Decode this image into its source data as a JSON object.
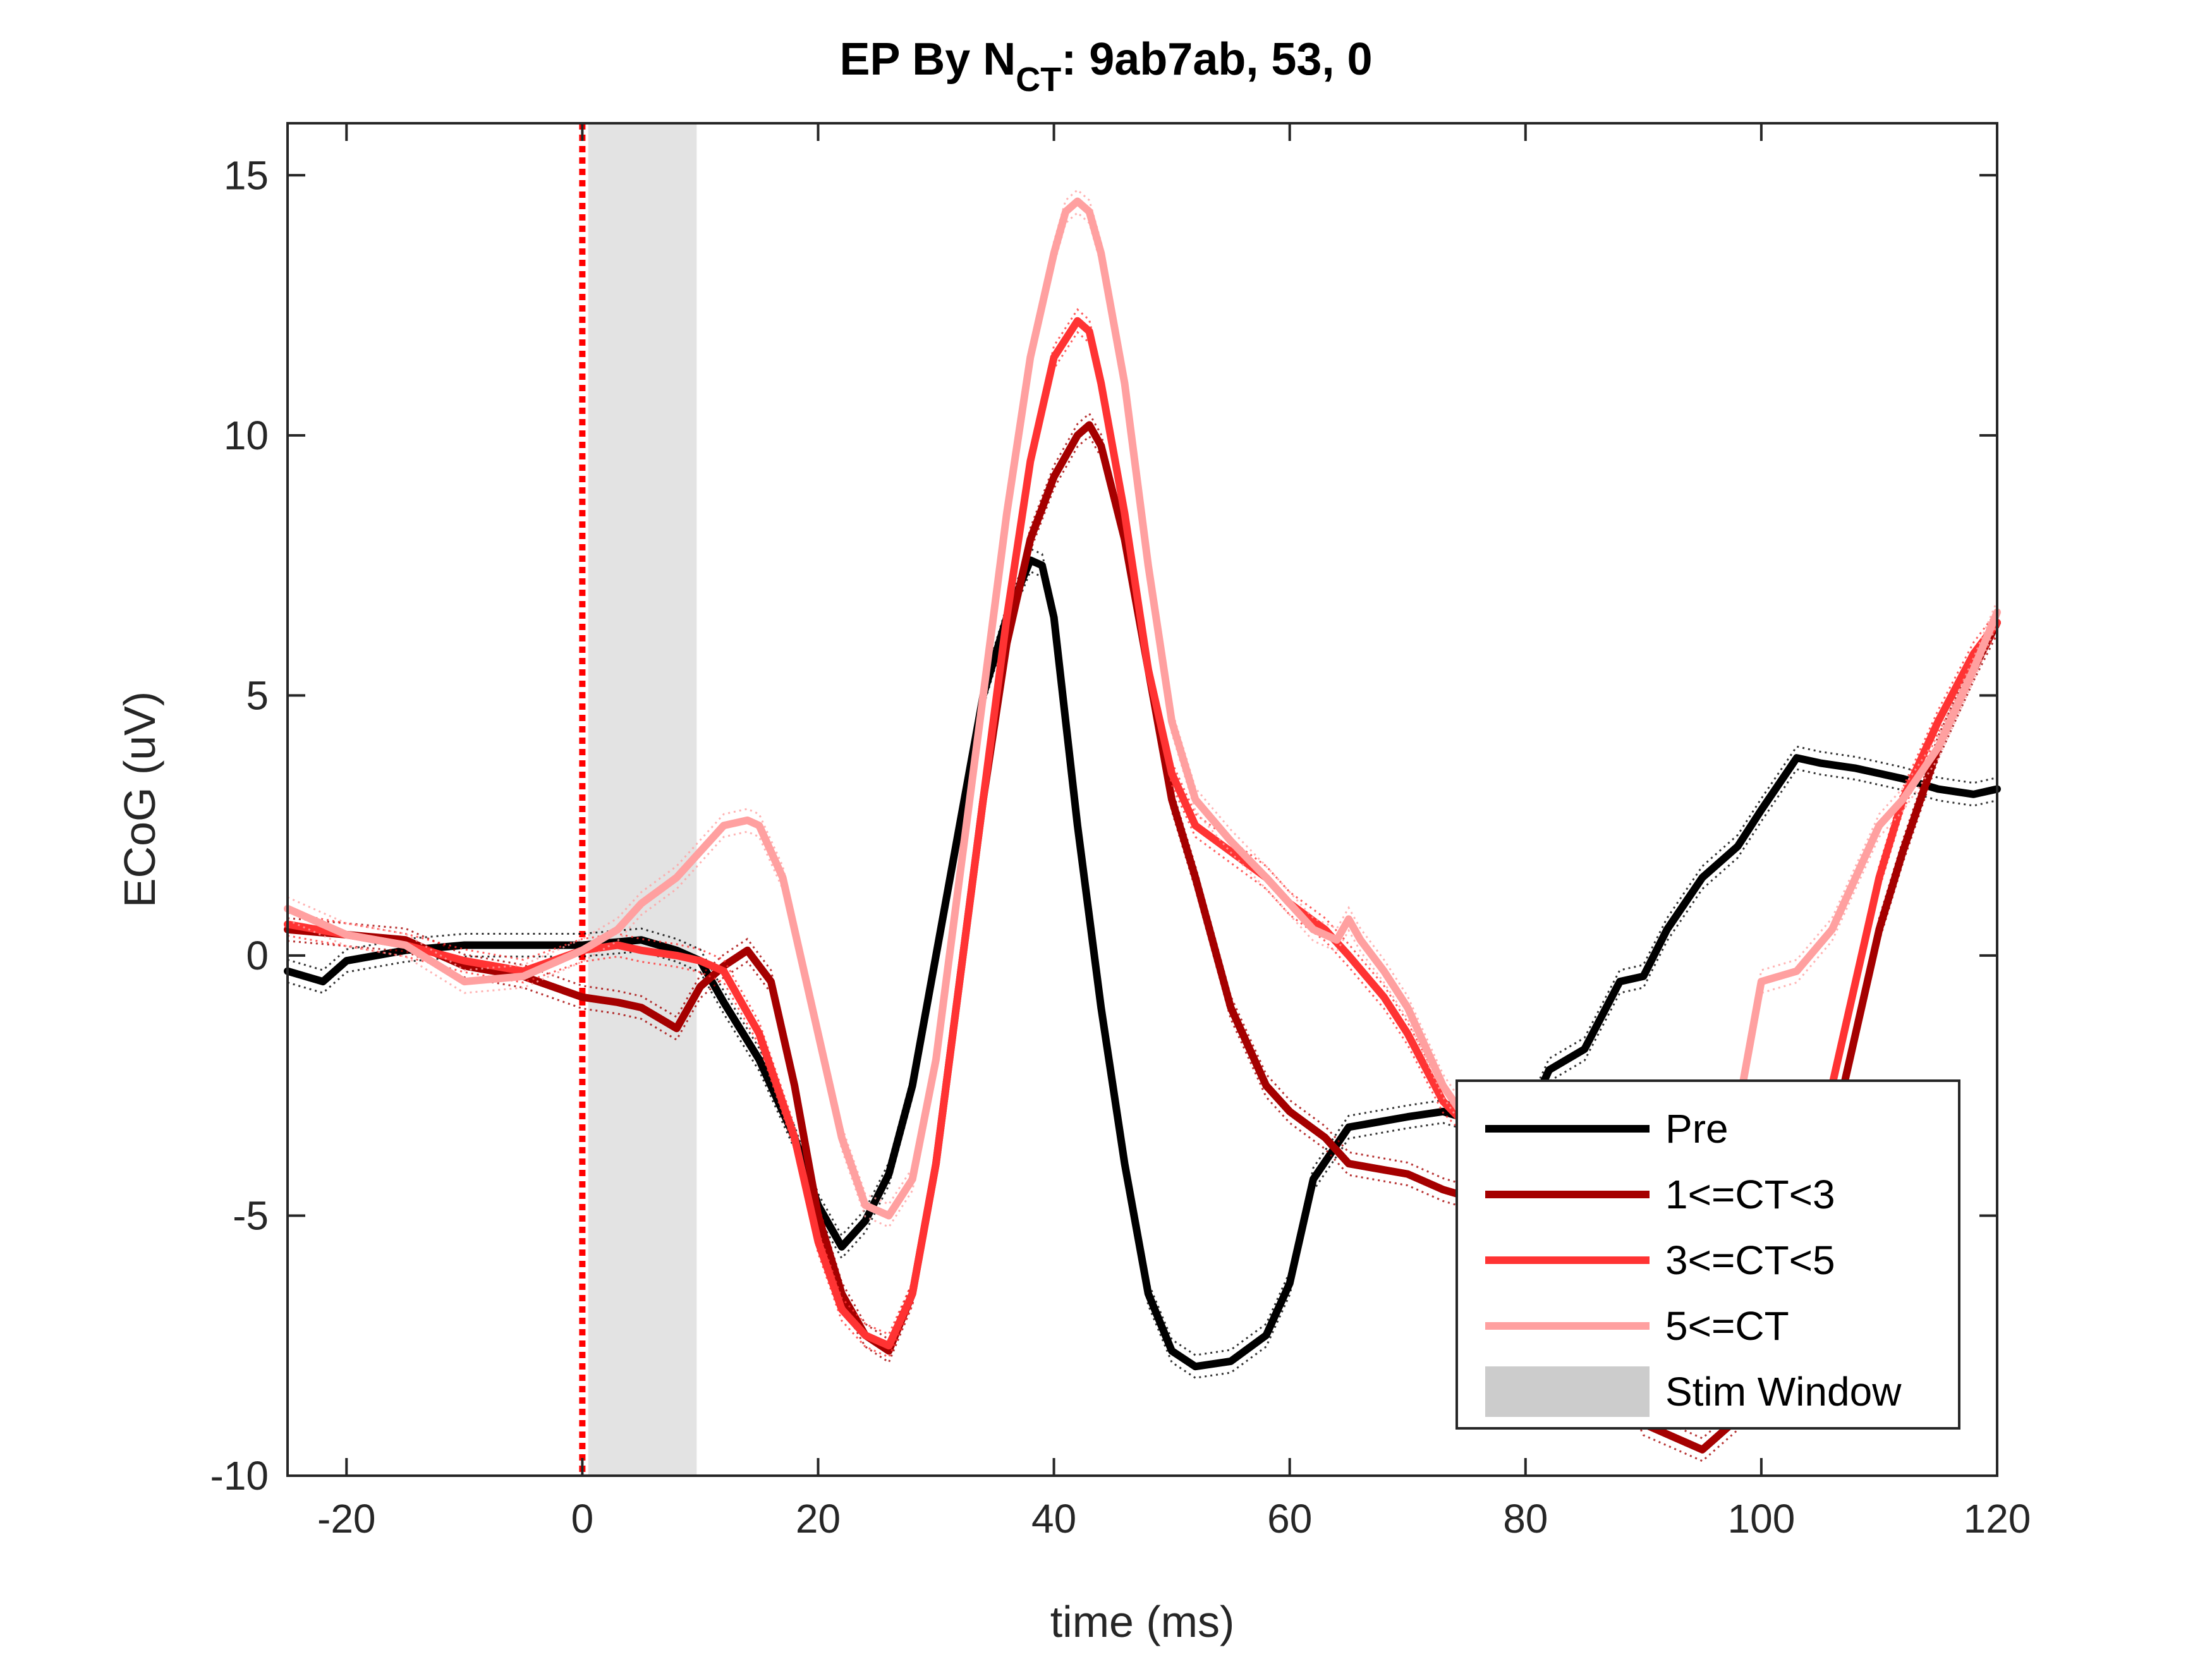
{
  "chart_data": {
    "type": "line",
    "title": {
      "prefix": "EP By N",
      "subscript": "CT",
      "suffix": ": 9ab7ab, 53, 0"
    },
    "xlabel": "time (ms)",
    "ylabel": "ECoG (uV)",
    "xlim": [
      -25,
      120
    ],
    "ylim": [
      -10,
      16
    ],
    "xticks": [
      -20,
      0,
      20,
      40,
      60,
      80,
      100,
      120
    ],
    "yticks": [
      -10,
      -5,
      0,
      5,
      10,
      15
    ],
    "xtick_labels": [
      "-20",
      "0",
      "20",
      "40",
      "60",
      "80",
      "100",
      "120"
    ],
    "ytick_labels": [
      "-10",
      "-5",
      "0",
      "5",
      "10",
      "15"
    ],
    "grid": false,
    "legend_position": "bottom-right",
    "stim_window": {
      "label": "Stim Window",
      "x": [
        0.5,
        9.7
      ],
      "color": "#cccccc"
    },
    "stim_marker": {
      "x": 0,
      "color": "#ff0000",
      "style": "dotted"
    },
    "series": [
      {
        "name": "Pre",
        "color": "#000000",
        "x": [
          -25,
          -22,
          -20,
          -15,
          -10,
          -5,
          0,
          5,
          8,
          10,
          12,
          15,
          18,
          20,
          22,
          24,
          26,
          28,
          30,
          32,
          34,
          36,
          38,
          39,
          40,
          42,
          44,
          46,
          48,
          50,
          52,
          55,
          58,
          60,
          62,
          65,
          70,
          73,
          76,
          78,
          80,
          82,
          85,
          88,
          90,
          92,
          95,
          98,
          100,
          103,
          105,
          108,
          110,
          112,
          115,
          118,
          120
        ],
        "y": [
          -0.3,
          -0.5,
          -0.1,
          0.1,
          0.2,
          0.2,
          0.2,
          0.3,
          0.1,
          -0.1,
          -0.9,
          -2.0,
          -3.5,
          -4.8,
          -5.6,
          -5.1,
          -4.2,
          -2.5,
          0.0,
          2.5,
          5.0,
          6.5,
          7.6,
          7.5,
          6.5,
          2.5,
          -1.0,
          -4.0,
          -6.5,
          -7.6,
          -7.9,
          -7.8,
          -7.3,
          -6.3,
          -4.3,
          -3.3,
          -3.1,
          -3.0,
          -3.2,
          -3.2,
          -3.2,
          -2.2,
          -1.8,
          -0.5,
          -0.4,
          0.5,
          1.5,
          2.1,
          2.8,
          3.8,
          3.7,
          3.6,
          3.5,
          3.4,
          3.2,
          3.1,
          3.2
        ]
      },
      {
        "name": "1<=CT<3",
        "color": "#a50000",
        "x": [
          -25,
          -20,
          -15,
          -10,
          -5,
          0,
          3,
          5,
          8,
          10,
          12,
          14,
          16,
          18,
          20,
          22,
          24,
          26,
          28,
          30,
          32,
          34,
          36,
          38,
          40,
          42,
          43,
          44,
          46,
          48,
          50,
          52,
          55,
          58,
          60,
          63,
          65,
          70,
          73,
          76,
          78,
          80,
          85,
          88,
          90,
          95,
          100,
          103,
          106,
          108,
          110,
          112,
          115,
          118,
          120
        ],
        "y": [
          0.5,
          0.4,
          0.3,
          -0.2,
          -0.4,
          -0.8,
          -0.9,
          -1.0,
          -1.4,
          -0.6,
          -0.2,
          0.1,
          -0.5,
          -2.5,
          -5.0,
          -6.5,
          -7.3,
          -7.6,
          -6.5,
          -4.0,
          -0.5,
          3.0,
          6.0,
          8.0,
          9.2,
          10.0,
          10.2,
          9.8,
          8.0,
          5.5,
          3.0,
          1.5,
          -1.0,
          -2.5,
          -3.0,
          -3.5,
          -4.0,
          -4.2,
          -4.5,
          -4.7,
          -4.7,
          -5.5,
          -6.5,
          -8.0,
          -9.0,
          -9.5,
          -8.5,
          -6.5,
          -3.5,
          -1.5,
          0.5,
          2.0,
          4.0,
          5.5,
          6.4
        ]
      },
      {
        "name": "3<=CT<5",
        "color": "#ff3333",
        "x": [
          -25,
          -20,
          -15,
          -10,
          -5,
          0,
          3,
          5,
          8,
          10,
          12,
          15,
          18,
          20,
          22,
          24,
          26,
          28,
          30,
          32,
          34,
          36,
          38,
          40,
          42,
          43,
          44,
          46,
          48,
          50,
          52,
          55,
          58,
          60,
          63,
          65,
          68,
          70,
          73,
          76,
          78,
          80,
          85,
          90,
          95,
          100,
          103,
          106,
          108,
          110,
          112,
          115,
          118,
          120
        ],
        "y": [
          0.6,
          0.4,
          0.2,
          -0.1,
          -0.3,
          0.1,
          0.2,
          0.1,
          0.0,
          -0.1,
          -0.3,
          -1.5,
          -3.5,
          -5.5,
          -6.8,
          -7.3,
          -7.5,
          -6.5,
          -4.0,
          -0.5,
          3.0,
          6.5,
          9.5,
          11.5,
          12.2,
          12.0,
          11.0,
          8.5,
          5.5,
          3.5,
          2.5,
          2.0,
          1.5,
          1.0,
          0.5,
          0.0,
          -0.8,
          -1.5,
          -2.8,
          -3.5,
          -4.0,
          -4.5,
          -6.0,
          -7.5,
          -8.5,
          -7.0,
          -5.0,
          -2.5,
          -0.5,
          1.5,
          3.0,
          4.5,
          5.8,
          6.4
        ]
      },
      {
        "name": "5<=CT",
        "color": "#ffa0a0",
        "x": [
          -25,
          -20,
          -15,
          -10,
          -5,
          0,
          3,
          5,
          8,
          10,
          12,
          14,
          15,
          17,
          20,
          22,
          24,
          26,
          28,
          30,
          32,
          34,
          36,
          38,
          40,
          41,
          42,
          43,
          44,
          46,
          48,
          50,
          52,
          55,
          58,
          60,
          62,
          64,
          65,
          66,
          68,
          70,
          73,
          76,
          80,
          85,
          90,
          95,
          98,
          100,
          103,
          106,
          108,
          110,
          112,
          115,
          118,
          120
        ],
        "y": [
          0.9,
          0.4,
          0.2,
          -0.5,
          -0.4,
          0.1,
          0.5,
          1.0,
          1.5,
          2.0,
          2.5,
          2.6,
          2.5,
          1.5,
          -1.5,
          -3.5,
          -4.8,
          -5.0,
          -4.3,
          -2.0,
          1.5,
          5.0,
          8.5,
          11.5,
          13.5,
          14.3,
          14.5,
          14.3,
          13.5,
          11.0,
          7.5,
          4.5,
          3.0,
          2.2,
          1.5,
          1.0,
          0.5,
          0.3,
          0.7,
          0.3,
          -0.3,
          -1.0,
          -2.5,
          -3.5,
          -4.5,
          -6.5,
          -8.0,
          -6.0,
          -3.0,
          -0.5,
          -0.3,
          0.5,
          1.5,
          2.5,
          3.0,
          4.0,
          5.5,
          6.6
        ]
      }
    ]
  }
}
